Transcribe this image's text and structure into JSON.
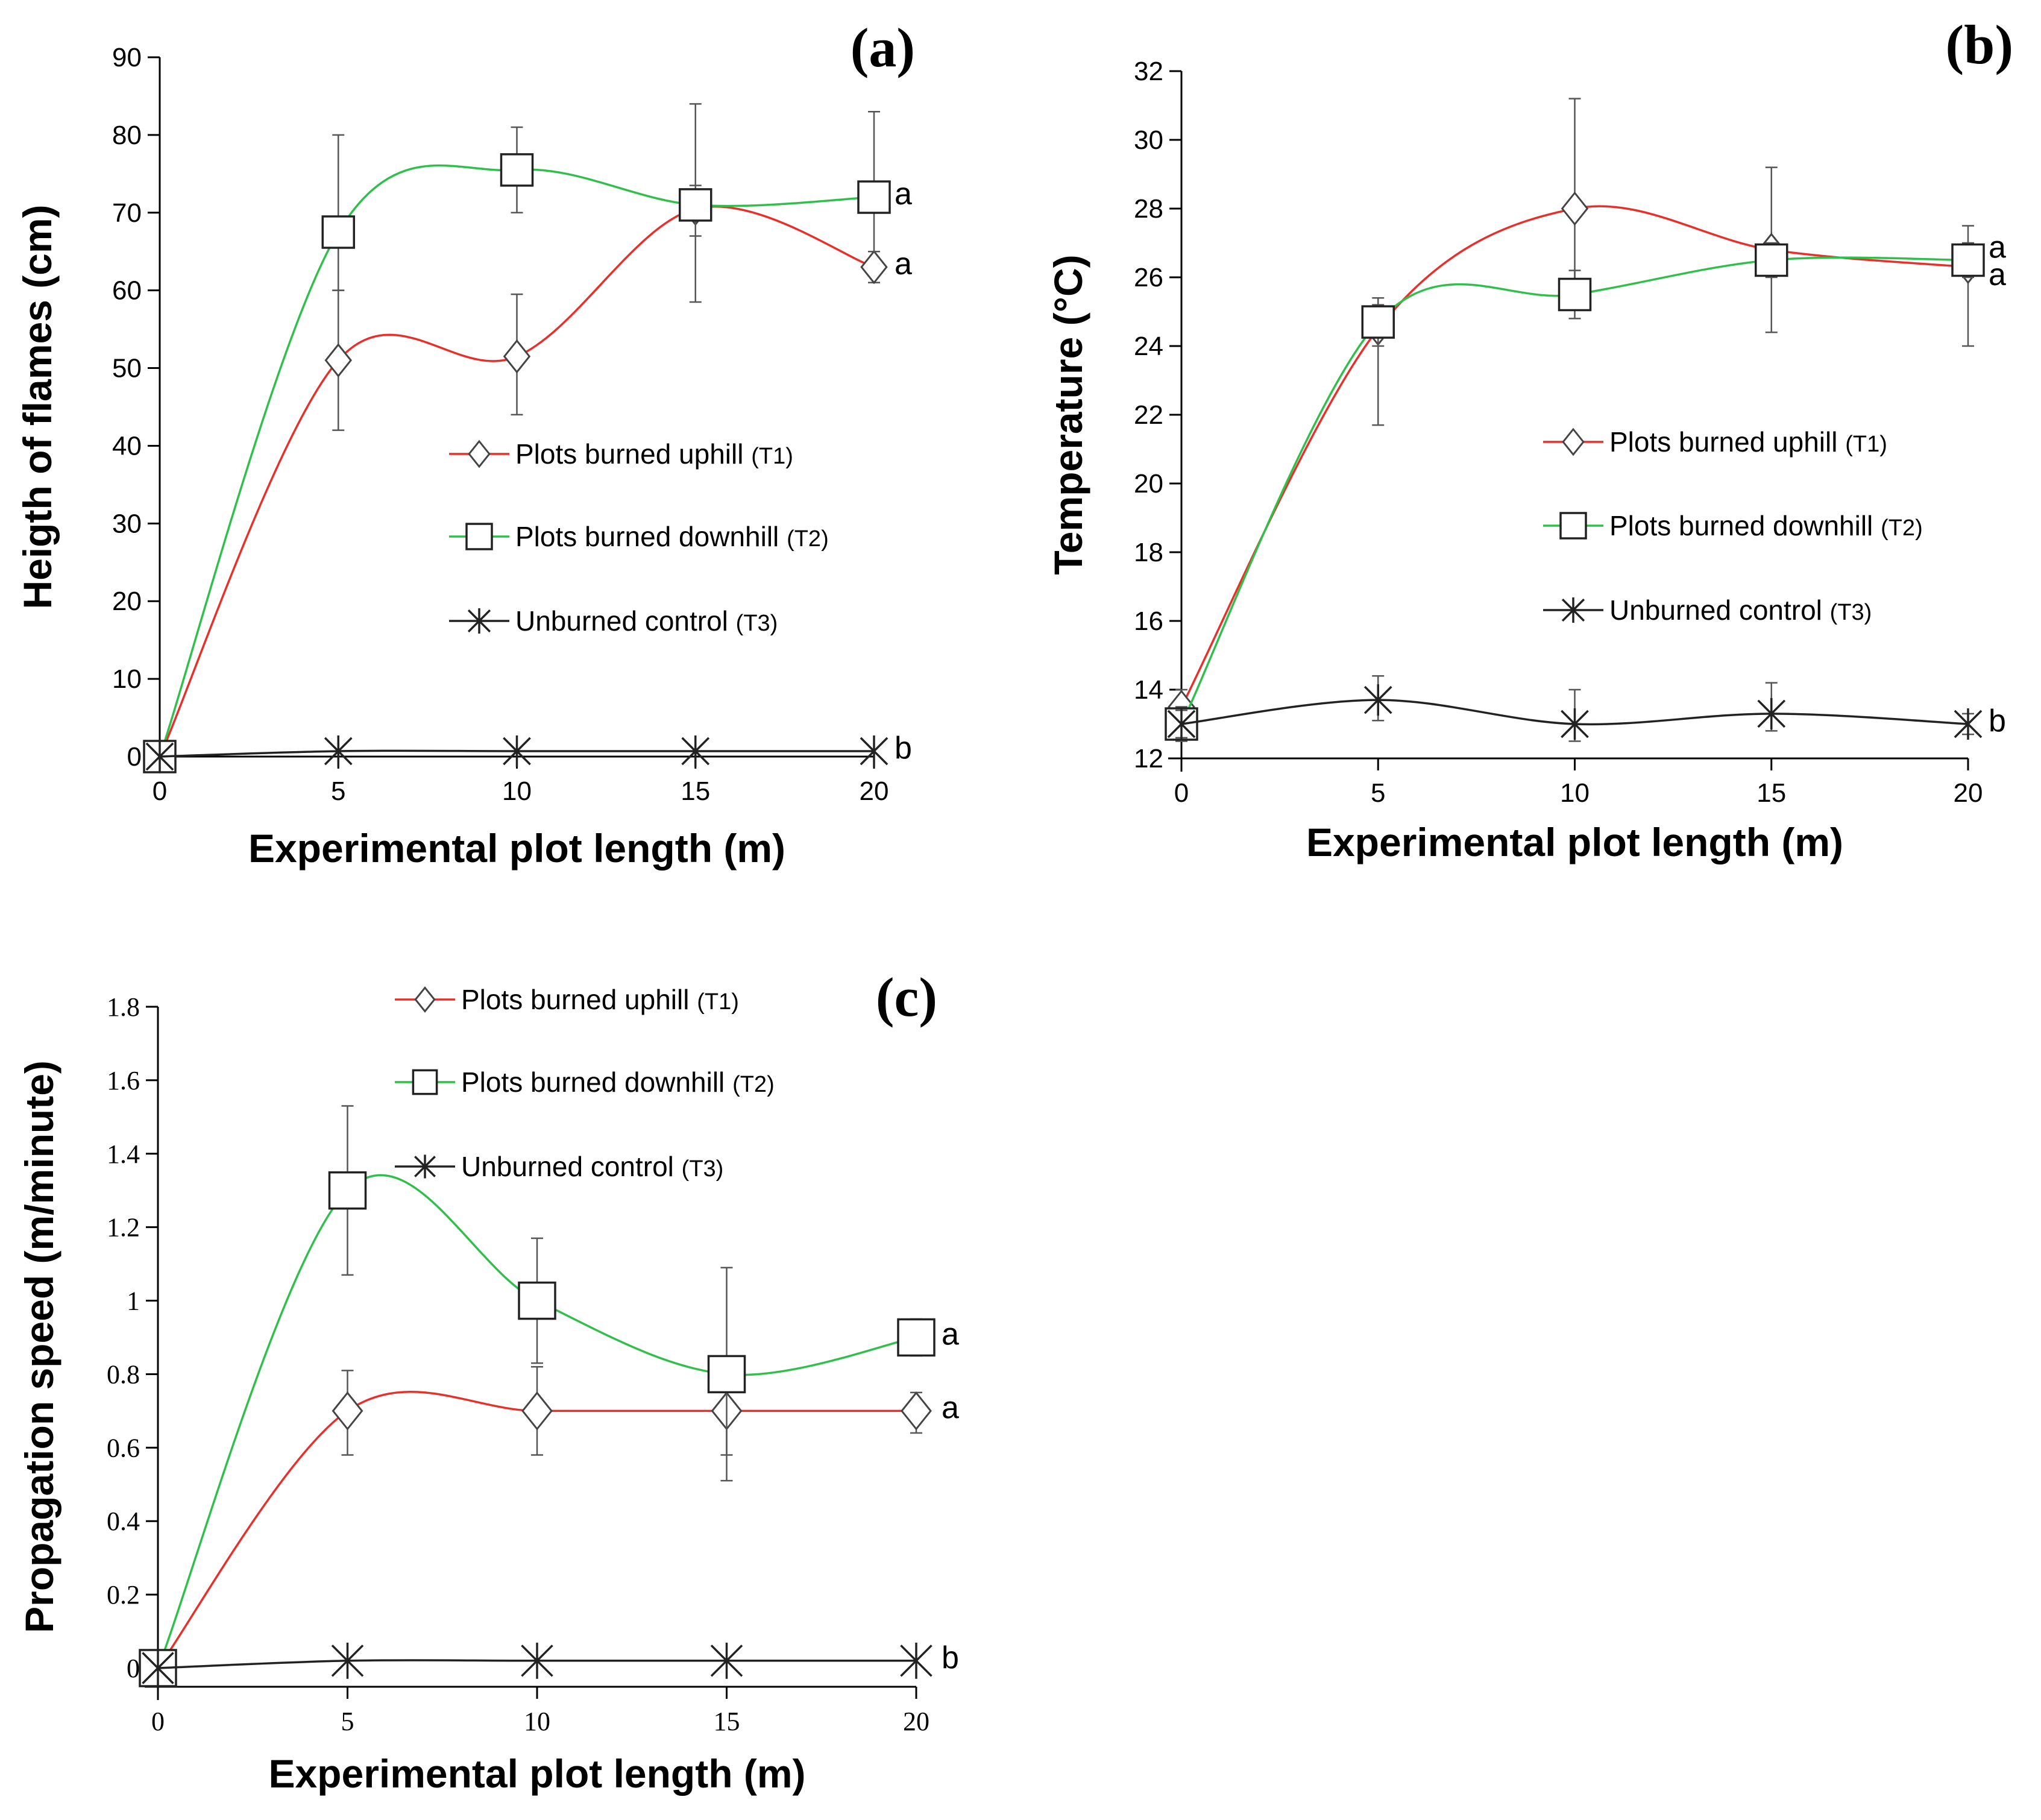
{
  "colors": {
    "T1": "#e8302a",
    "T2": "#2fbf4a",
    "T3": "#222222",
    "axis": "#000000"
  },
  "legend": {
    "entries": [
      {
        "key": "T1",
        "label": "Plots burned uphill",
        "suffix": "(T1)",
        "marker": "diamond"
      },
      {
        "key": "T2",
        "label": "Plots burned downhill",
        "suffix": "(T2)",
        "marker": "square"
      },
      {
        "key": "T3",
        "label": "Unburned control",
        "suffix": "(T3)",
        "marker": "star"
      }
    ]
  },
  "chart_data": [
    {
      "panel": "(a)",
      "type": "line",
      "xlabel": "Experimental plot length (m)",
      "ylabel": "Heigth of flames (cm)",
      "xlim": [
        0,
        20
      ],
      "ylim": [
        0,
        90
      ],
      "x_ticks": [
        0,
        5,
        10,
        15,
        20
      ],
      "y_ticks": [
        0,
        10,
        20,
        30,
        40,
        50,
        60,
        70,
        80,
        90
      ],
      "legend_position": "center-right",
      "series": [
        {
          "name": "Plots burned uphill",
          "key": "T1",
          "x": [
            0,
            5,
            10,
            15,
            20
          ],
          "values": [
            0,
            51,
            51.5,
            70.5,
            63
          ],
          "err_low": [
            0,
            9,
            7.5,
            12,
            2
          ],
          "err_high": [
            0,
            9,
            8,
            3,
            2
          ],
          "group": "a"
        },
        {
          "name": "Plots burned downhill",
          "key": "T2",
          "x": [
            0,
            5,
            10,
            15,
            20
          ],
          "values": [
            0,
            67.5,
            75.5,
            71,
            72
          ],
          "err_low": [
            0,
            7.5,
            5.5,
            4,
            7
          ],
          "err_high": [
            0,
            12.5,
            5.5,
            13,
            11
          ],
          "group": "a"
        },
        {
          "name": "Unburned control",
          "key": "T3",
          "x": [
            0,
            5,
            10,
            15,
            20
          ],
          "values": [
            0,
            0.7,
            0.7,
            0.7,
            0.7
          ],
          "err_low": [
            0,
            0,
            0,
            0,
            0
          ],
          "err_high": [
            0,
            0,
            0,
            0,
            0
          ],
          "group": "b"
        }
      ]
    },
    {
      "panel": "(b)",
      "type": "line",
      "xlabel": "Experimental plot length (m)",
      "ylabel": "Temperature (°C)",
      "xlim": [
        0,
        20
      ],
      "ylim": [
        12,
        32
      ],
      "x_ticks": [
        0,
        5,
        10,
        15,
        20
      ],
      "y_ticks": [
        12,
        14,
        16,
        18,
        20,
        22,
        24,
        26,
        28,
        30,
        32
      ],
      "legend_position": "center-right",
      "series": [
        {
          "name": "Plots burned uphill",
          "key": "T1",
          "x": [
            0,
            5,
            10,
            15,
            20
          ],
          "values": [
            13.5,
            24.5,
            28,
            26.8,
            26.3
          ],
          "err_low": [
            0.5,
            2.8,
            2.1,
            2.4,
            2.3
          ],
          "err_high": [
            0.5,
            0.9,
            3.2,
            2.4,
            1.2
          ],
          "group": "a"
        },
        {
          "name": "Plots burned downhill",
          "key": "T2",
          "x": [
            0,
            5,
            10,
            15,
            20
          ],
          "values": [
            13,
            24.7,
            25.5,
            26.5,
            26.5
          ],
          "err_low": [
            0.5,
            0.7,
            0.7,
            0.5,
            0.5
          ],
          "err_high": [
            0.5,
            0.5,
            0.7,
            0.5,
            0.5
          ],
          "group": "a"
        },
        {
          "name": "Unburned control",
          "key": "T3",
          "x": [
            0,
            5,
            10,
            15,
            20
          ],
          "values": [
            13,
            13.7,
            13,
            13.3,
            13
          ],
          "err_low": [
            0.4,
            0.6,
            0.5,
            0.5,
            0.3
          ],
          "err_high": [
            0.4,
            0.7,
            1,
            0.9,
            0.3
          ],
          "group": "b"
        }
      ]
    },
    {
      "panel": "(c)",
      "type": "line",
      "xlabel": "Experimental plot length (m)",
      "ylabel": "Propagation speed (m/minute)",
      "xlim": [
        0,
        20
      ],
      "ylim": [
        0,
        1.8
      ],
      "x_ticks": [
        0,
        5,
        10,
        15,
        20
      ],
      "y_tick_labels": [
        "0",
        "0.2",
        "0.4",
        "0.6",
        "0.8",
        "1",
        "1.2",
        "1.4",
        "1.6",
        "1.8"
      ],
      "legend_position": "top-center",
      "series": [
        {
          "name": "Plots burned uphill",
          "key": "T1",
          "x": [
            0,
            5,
            10,
            15,
            20
          ],
          "values": [
            0,
            0.7,
            0.7,
            0.7,
            0.7
          ],
          "err_low": [
            0,
            0.12,
            0.12,
            0.19,
            0.06
          ],
          "err_high": [
            0,
            0.11,
            0.12,
            0.11,
            0.05
          ],
          "group": "a"
        },
        {
          "name": "Plots burned downhill",
          "key": "T2",
          "x": [
            0,
            5,
            10,
            15,
            20
          ],
          "values": [
            0,
            1.3,
            1,
            0.8,
            0.9
          ],
          "err_low": [
            0,
            0.23,
            0.17,
            0.22,
            0.05
          ],
          "err_high": [
            0,
            0.23,
            0.17,
            0.29,
            0.05
          ],
          "group": "a"
        },
        {
          "name": "Unburned control",
          "key": "T3",
          "x": [
            0,
            5,
            10,
            15,
            20
          ],
          "values": [
            0,
            0.02,
            0.02,
            0.02,
            0.02
          ],
          "err_low": [
            0,
            0,
            0,
            0,
            0
          ],
          "err_high": [
            0,
            0,
            0,
            0,
            0
          ],
          "group": "b"
        }
      ]
    }
  ]
}
